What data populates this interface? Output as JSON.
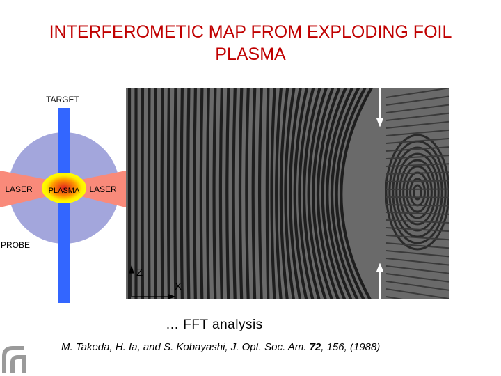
{
  "header": {
    "title": "INTERFEROMETIC MAP FROM EXPLODING FOIL PLASMA"
  },
  "diagram": {
    "target": "TARGET",
    "laser_left": "LASER",
    "plasma": "PLASMA",
    "laser_right": "LASER",
    "probe": "PROBE"
  },
  "interferogram": {
    "axis_z": "Z",
    "axis_x": "X"
  },
  "caption": "… FFT analysis",
  "citation": {
    "authors": "M. Takeda, H. Ia, and S. Kobayashi, J. Opt. Soc. Am.",
    "volume": "72",
    "pages": ", 156, (1988)"
  }
}
